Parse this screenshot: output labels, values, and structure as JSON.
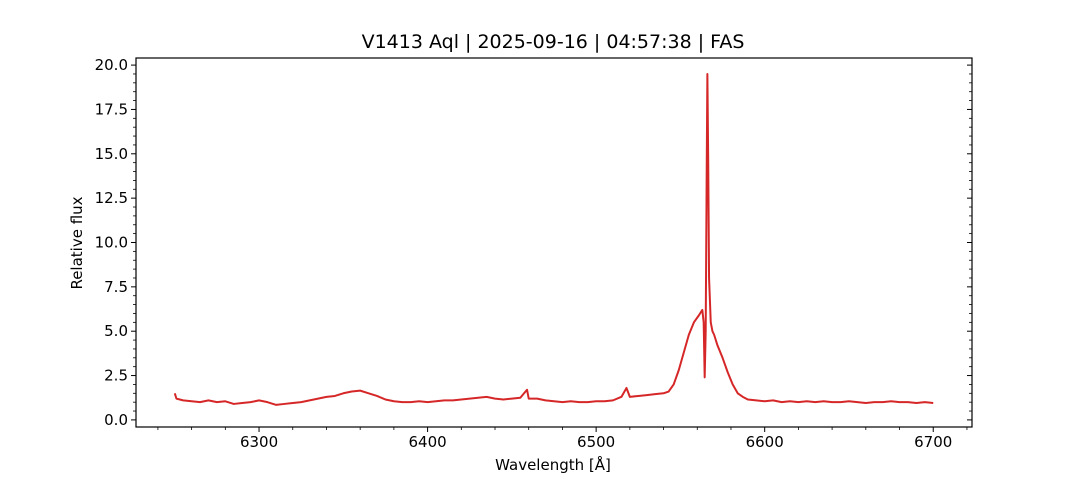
{
  "chart_data": {
    "type": "line",
    "title": "V1413 Aql | 2025-09-16 | 04:57:38 | FAS",
    "xlabel": "Wavelength [Å]",
    "ylabel": "Relative flux",
    "xlim": [
      6227,
      6723
    ],
    "ylim": [
      -0.4,
      20.4
    ],
    "xticks": [
      6300,
      6400,
      6500,
      6600,
      6700
    ],
    "xtick_labels": [
      "6300",
      "6400",
      "6500",
      "6600",
      "6700"
    ],
    "yticks": [
      0,
      2.5,
      5,
      7.5,
      10,
      12.5,
      15,
      17.5,
      20
    ],
    "ytick_labels": [
      "0.0",
      "2.5",
      "5.0",
      "7.5",
      "10.0",
      "12.5",
      "15.0",
      "17.5",
      "20.0"
    ],
    "grid": false,
    "series": [
      {
        "color": "#d62728",
        "x": [
          6250,
          6251,
          6255,
          6260,
          6265,
          6270,
          6275,
          6280,
          6285,
          6290,
          6295,
          6300,
          6305,
          6310,
          6315,
          6320,
          6325,
          6330,
          6335,
          6340,
          6345,
          6350,
          6355,
          6360,
          6365,
          6370,
          6375,
          6380,
          6385,
          6390,
          6395,
          6400,
          6405,
          6410,
          6415,
          6420,
          6425,
          6430,
          6435,
          6440,
          6445,
          6450,
          6455,
          6459,
          6460,
          6465,
          6470,
          6475,
          6480,
          6485,
          6490,
          6495,
          6500,
          6505,
          6510,
          6515,
          6518,
          6520,
          6525,
          6530,
          6535,
          6540,
          6543,
          6546,
          6549,
          6552,
          6555,
          6558,
          6561,
          6563,
          6563.8,
          6564.4,
          6565,
          6565.6,
          6566,
          6566.5,
          6567,
          6568,
          6569,
          6570,
          6572,
          6575,
          6578,
          6581,
          6584,
          6587,
          6590,
          6595,
          6600,
          6605,
          6610,
          6615,
          6620,
          6625,
          6630,
          6635,
          6640,
          6645,
          6650,
          6655,
          6660,
          6665,
          6670,
          6675,
          6680,
          6685,
          6690,
          6695,
          6700
        ],
        "y": [
          1.5,
          1.2,
          1.1,
          1.05,
          1.0,
          1.1,
          1.0,
          1.05,
          0.9,
          0.95,
          1.0,
          1.1,
          1.0,
          0.85,
          0.9,
          0.95,
          1.0,
          1.1,
          1.2,
          1.3,
          1.35,
          1.5,
          1.6,
          1.65,
          1.5,
          1.35,
          1.15,
          1.05,
          1.0,
          1.0,
          1.05,
          1.0,
          1.05,
          1.1,
          1.1,
          1.15,
          1.2,
          1.25,
          1.3,
          1.2,
          1.15,
          1.2,
          1.25,
          1.7,
          1.2,
          1.2,
          1.1,
          1.05,
          1.0,
          1.05,
          1.0,
          1.0,
          1.05,
          1.05,
          1.1,
          1.3,
          1.8,
          1.3,
          1.35,
          1.4,
          1.45,
          1.5,
          1.6,
          2.0,
          2.8,
          3.8,
          4.8,
          5.5,
          5.9,
          6.2,
          5.5,
          2.4,
          5.0,
          14.0,
          19.5,
          14.5,
          8.0,
          5.5,
          5.0,
          4.8,
          4.2,
          3.5,
          2.7,
          2.0,
          1.5,
          1.3,
          1.15,
          1.1,
          1.05,
          1.1,
          1.0,
          1.05,
          1.0,
          1.05,
          1.0,
          1.05,
          1.0,
          1.0,
          1.05,
          1.0,
          0.95,
          1.0,
          1.0,
          1.05,
          1.0,
          1.0,
          0.95,
          1.0,
          0.95
        ]
      }
    ]
  }
}
